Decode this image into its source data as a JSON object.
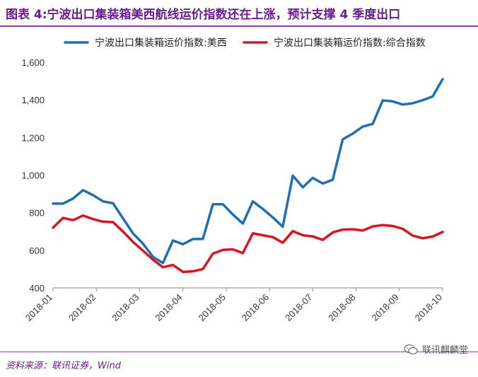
{
  "header": {
    "title": "图表 4:宁波出口集装箱美西航线运价指数还在上涨，预计支撑 4 季度出口"
  },
  "footer": {
    "source": "资料来源：联讯证券，Wind"
  },
  "watermark": {
    "text": "联讯麒麟堂",
    "icon": "wechat-icon"
  },
  "chart_data": {
    "type": "line",
    "title": "",
    "xlabel": "",
    "ylabel": "",
    "ylim": [
      400,
      1600
    ],
    "yticks": [
      400,
      600,
      800,
      1000,
      1200,
      1400,
      1600
    ],
    "ytick_labels": [
      "400",
      "600",
      "800",
      "1,000",
      "1,200",
      "1,400",
      "1,600"
    ],
    "xticks": [
      "2018-01",
      "2018-02",
      "2018-03",
      "2018-04",
      "2018-05",
      "2018-06",
      "2018-07",
      "2018-08",
      "2018-09",
      "2018-10"
    ],
    "legend_position": "top",
    "grid": false,
    "series": [
      {
        "name": "宁波出口集装箱运价指数:美西",
        "color": "#1f6fb5",
        "values": [
          848,
          848,
          875,
          920,
          893,
          860,
          850,
          770,
          690,
          635,
          565,
          532,
          652,
          632,
          660,
          660,
          845,
          845,
          790,
          742,
          860,
          820,
          775,
          725,
          997,
          935,
          985,
          955,
          975,
          1190,
          1220,
          1258,
          1272,
          1397,
          1392,
          1375,
          1382,
          1398,
          1418,
          1510
        ]
      },
      {
        "name": "宁波出口集装箱运价指数:综合指数",
        "color": "#d9161c",
        "values": [
          720,
          772,
          760,
          785,
          766,
          752,
          750,
          700,
          645,
          598,
          550,
          510,
          522,
          485,
          488,
          500,
          582,
          602,
          605,
          585,
          690,
          680,
          670,
          640,
          702,
          680,
          674,
          655,
          695,
          710,
          712,
          705,
          727,
          734,
          729,
          714,
          678,
          664,
          673,
          697
        ]
      }
    ]
  }
}
